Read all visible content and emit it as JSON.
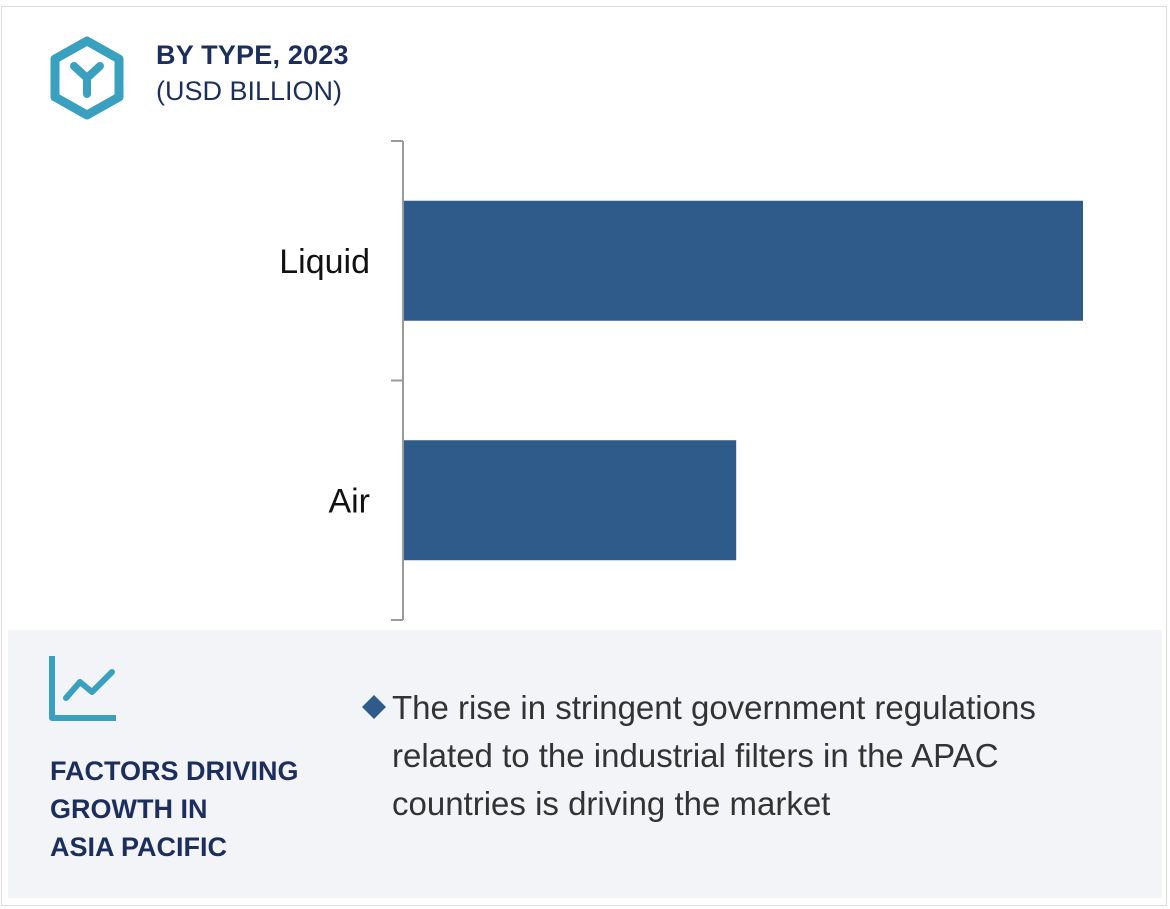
{
  "header": {
    "title": "BY TYPE, 2023",
    "subtitle": "(USD BILLION)",
    "icon": "hexagon-y-icon"
  },
  "chart_data": {
    "type": "bar",
    "orientation": "horizontal",
    "title": "BY TYPE, 2023",
    "subtitle": "(USD BILLION)",
    "categories": [
      "Liquid",
      "Air"
    ],
    "values": [
      1.0,
      0.49
    ],
    "value_scale": "relative (no axis values printed; Air bar ≈ 49% of Liquid bar)",
    "bar_color": "#2e5b8a",
    "axis_color": "#9a9a9a",
    "grid": false,
    "legend": "none"
  },
  "factors": {
    "icon": "line-chart-icon",
    "title_lines": [
      "FACTORS DRIVING",
      "GROWTH IN",
      "ASIA PACIFIC"
    ],
    "items": [
      "The rise in stringent government regulations related to the industrial filters in the APAC countries is driving the market"
    ]
  },
  "colors": {
    "accent": "#3aa0bf",
    "navy": "#1c2f5c",
    "bar": "#2e5b8a",
    "panel_bg": "#f3f4f8"
  }
}
